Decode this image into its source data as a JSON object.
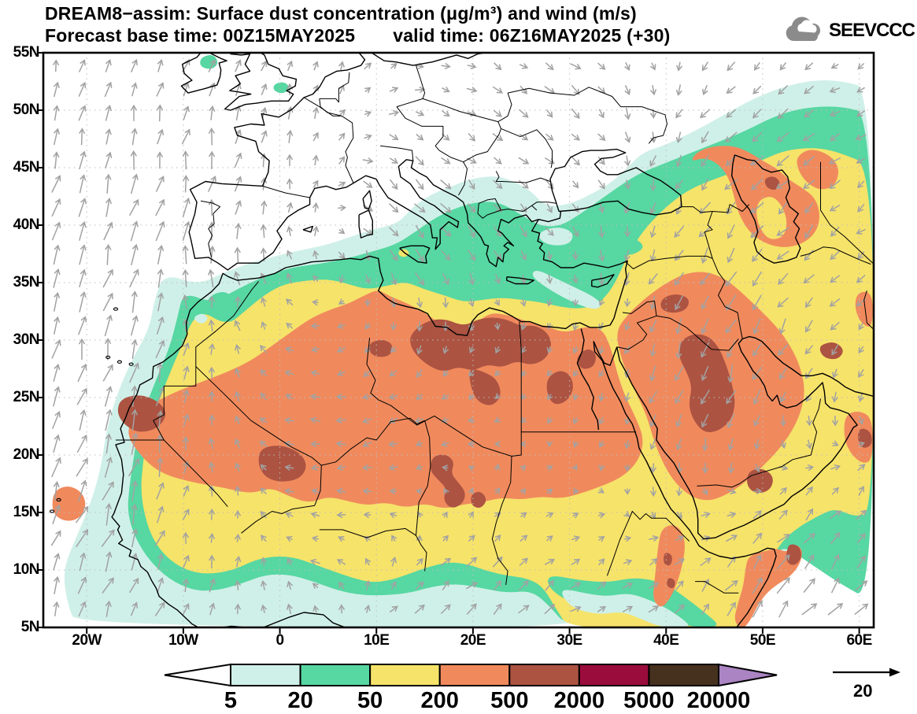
{
  "title": {
    "line1": "DREAM8−assim: Surface dust concentration (μg/m³) and wind (m/s)",
    "forecast_base": "Forecast base time: 00Z15MAY2025",
    "valid_time": "valid time: 06Z16MAY2025 (+30)"
  },
  "logo": {
    "text": "SEEVCCC"
  },
  "axes": {
    "lat_labels": [
      "55N",
      "50N",
      "45N",
      "40N",
      "35N",
      "30N",
      "25N",
      "20N",
      "15N",
      "10N",
      "5N"
    ],
    "lon_labels": [
      "20W",
      "10W",
      "0",
      "10E",
      "20E",
      "30E",
      "40E",
      "50E",
      "60E"
    ]
  },
  "colorbar": {
    "tick_labels": [
      "5",
      "20",
      "50",
      "200",
      "500",
      "2000",
      "5000",
      "20000"
    ],
    "segment_colors": [
      "#ffffff",
      "#cff0e8",
      "#57d7a2",
      "#f6e36a",
      "#f08a5d",
      "#ac5342",
      "#9a0c3c",
      "#46301e",
      "#ab84c3"
    ]
  },
  "wind_legend": {
    "label": "20"
  },
  "style_colors": {
    "coastline": "#000000",
    "wind_arrow": "#a2a2a2",
    "gridline": "#bdbdbd",
    "logo_gray": "#8b8b8b"
  },
  "chart_data": {
    "type": "heatmap",
    "title": "DREAM8−assim: Surface dust concentration (μg/m³) and wind (m/s)",
    "model": "DREAM8−assim",
    "variable": "Surface dust concentration",
    "units": "μg/m³",
    "wind_units": "m/s",
    "forecast_base_time": "00Z15MAY2025",
    "valid_time": "06Z16MAY2025",
    "forecast_lead": "+30",
    "levels": [
      5,
      20,
      50,
      200,
      500,
      2000,
      5000,
      20000
    ],
    "level_colors": [
      "#ffffff",
      "#cff0e8",
      "#57d7a2",
      "#f6e36a",
      "#f08a5d",
      "#ac5342",
      "#9a0c3c",
      "#46301e",
      "#ab84c3"
    ],
    "lon_range": [
      -24.5,
      61.5
    ],
    "lat_range": [
      5,
      55
    ],
    "lat_ticks_deg": [
      55,
      50,
      45,
      40,
      35,
      30,
      25,
      20,
      15,
      10,
      5
    ],
    "lon_ticks_deg": [
      -20,
      -10,
      0,
      10,
      20,
      30,
      40,
      50,
      60
    ],
    "wind_reference_ms": 20,
    "grid": true,
    "legend_position": "bottom",
    "high_dust_regions": [
      "central Sahara (Algeria–Libya–Egypt, 500–2000 μg/m³ cores)",
      "Mali / Western Sahara",
      "Chad / Niger",
      "Iraq – eastern Saudi Arabia",
      "Horn of Africa (Somali coast)",
      "Caspian region"
    ]
  }
}
